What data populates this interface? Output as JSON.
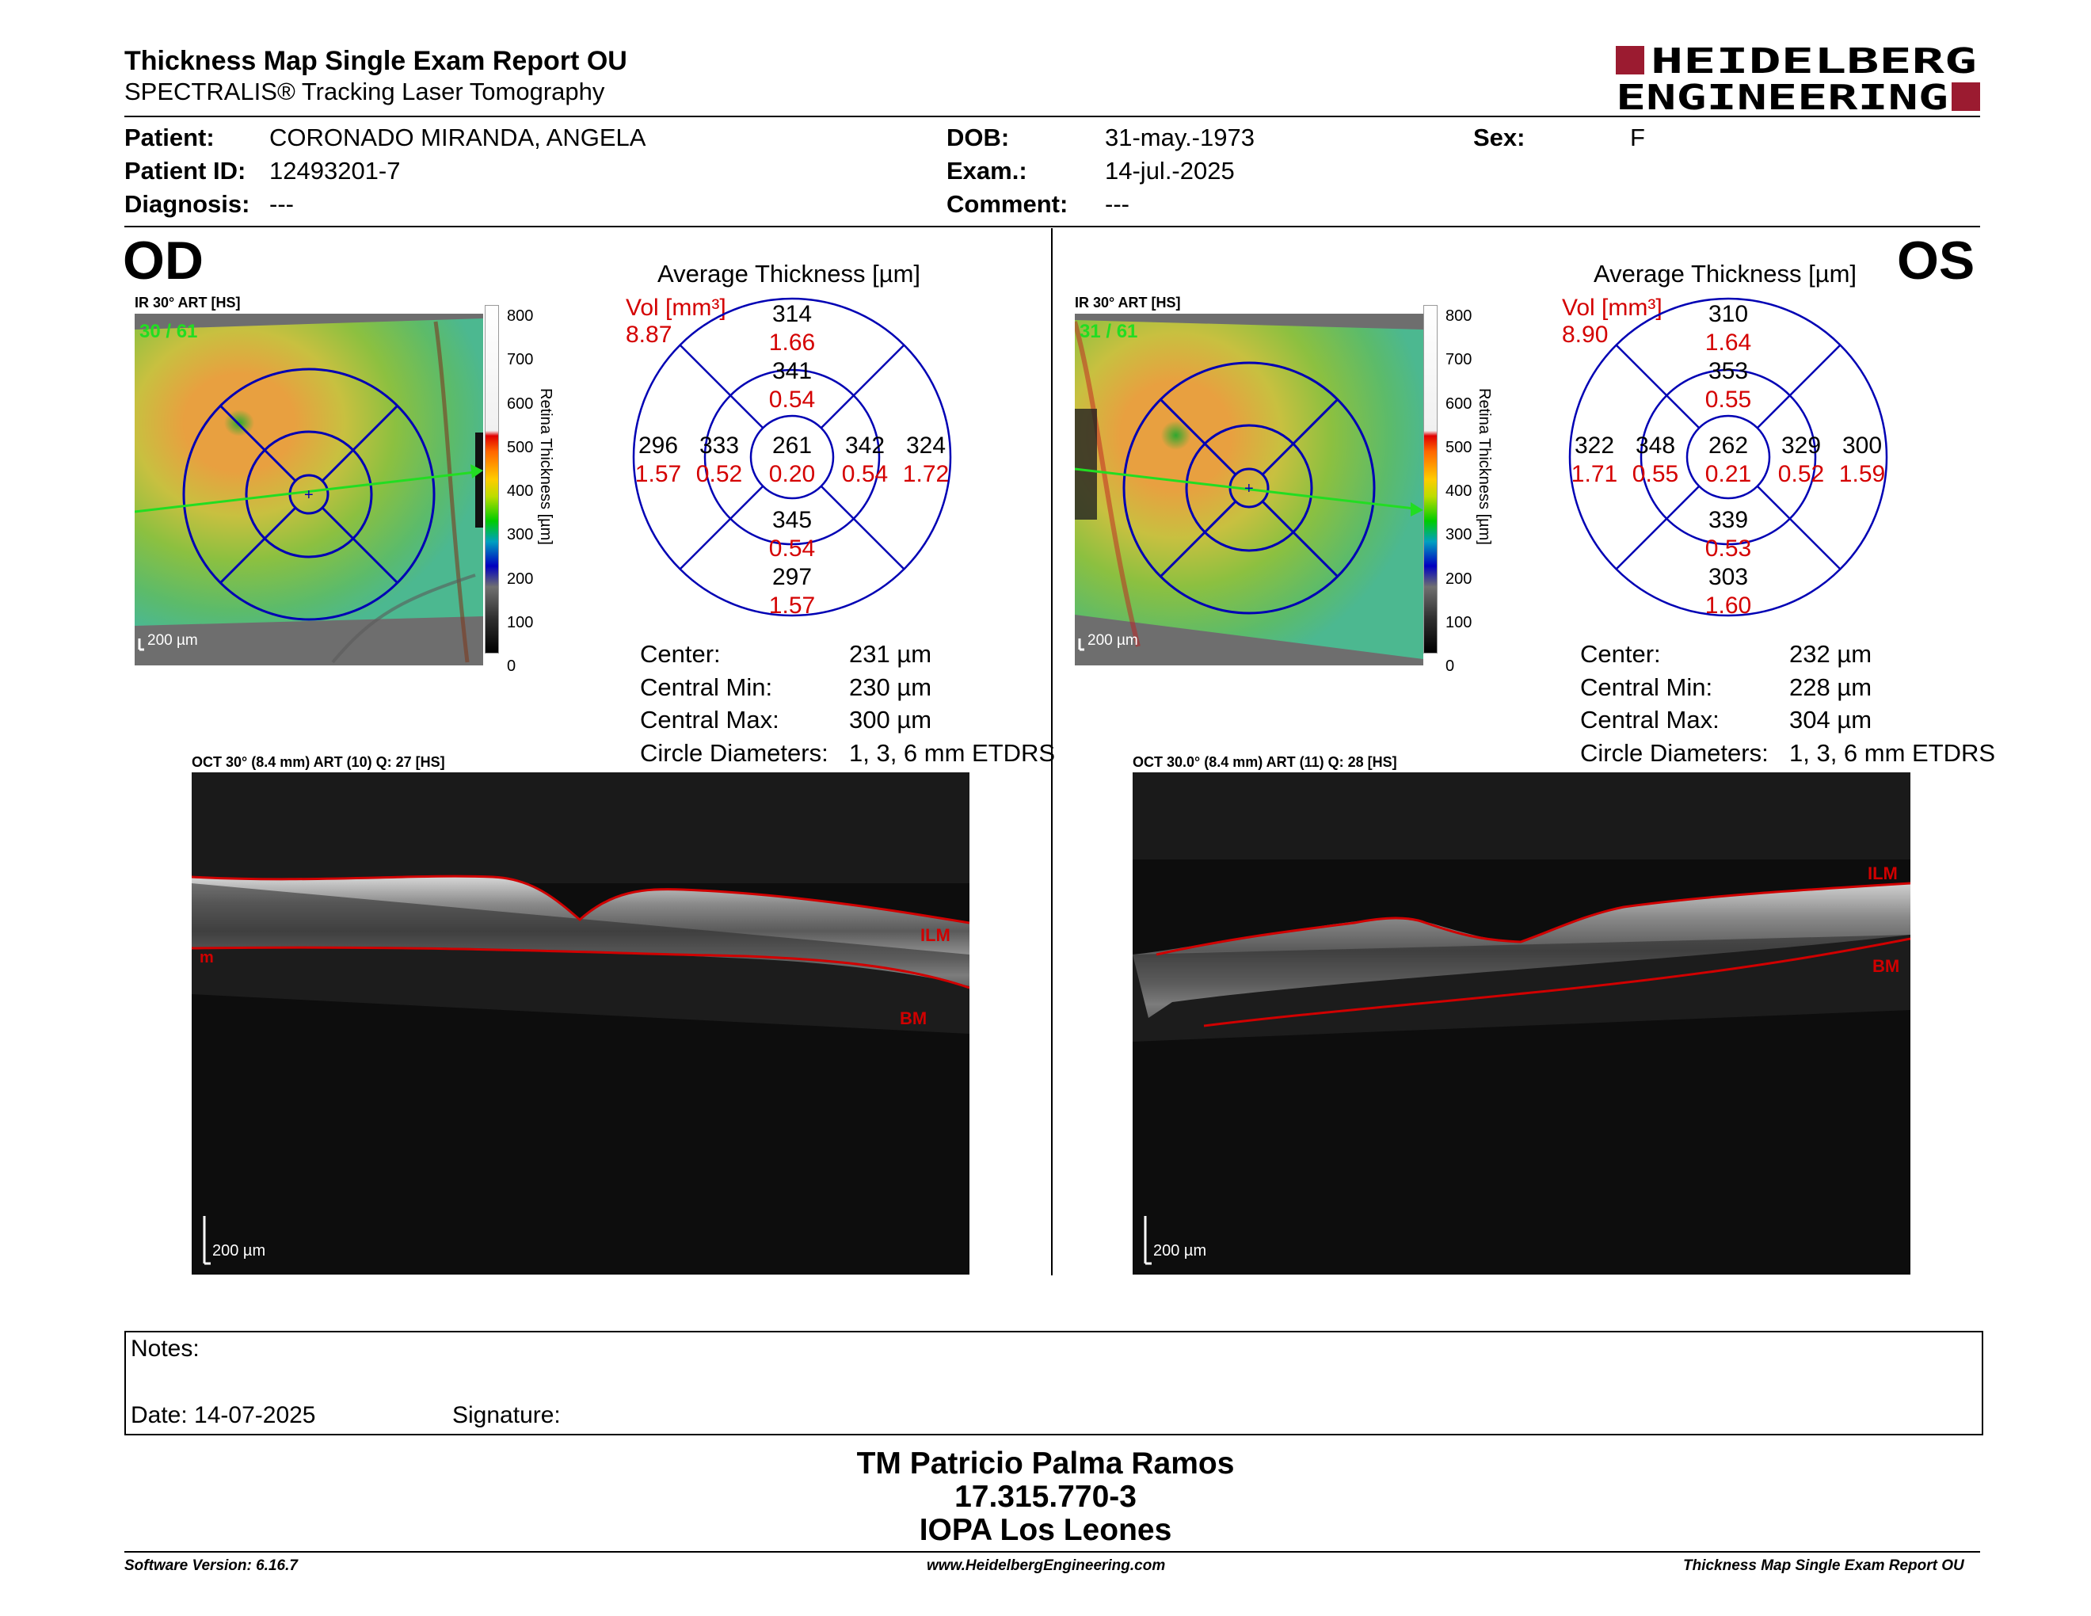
{
  "header": {
    "title": "Thickness Map Single Exam Report OU",
    "subtitle": "SPECTRALIS® Tracking Laser Tomography",
    "logo_line1": "HEIDELBERG",
    "logo_line2": "ENGINEERING",
    "logo_color": "#9b1b30"
  },
  "patient": {
    "patient_label": "Patient:",
    "patient_value": "CORONADO MIRANDA, ANGELA",
    "id_label": "Patient ID:",
    "id_value": "12493201-7",
    "diagnosis_label": "Diagnosis:",
    "diagnosis_value": "---",
    "dob_label": "DOB:",
    "dob_value": "31-may.-1973",
    "exam_label": "Exam.:",
    "exam_value": "14-jul.-2025",
    "comment_label": "Comment:",
    "comment_value": "---",
    "sex_label": "Sex:",
    "sex_value": "F"
  },
  "od": {
    "eye_label": "OD",
    "ir_title": "IR 30° ART [HS]",
    "ir_counter": "30 / 61",
    "ir_scale": "200 µm",
    "avg_title": "Average Thickness [µm]",
    "vol_label": "Vol [mm³]",
    "vol_value": "8.87",
    "sectors": {
      "center": {
        "t": "261",
        "v": "0.20"
      },
      "inner_sup": {
        "t": "341",
        "v": "0.54"
      },
      "inner_inf": {
        "t": "345",
        "v": "0.54"
      },
      "inner_left": {
        "t": "333",
        "v": "0.52"
      },
      "inner_right": {
        "t": "342",
        "v": "0.54"
      },
      "outer_sup": {
        "t": "314",
        "v": "1.66"
      },
      "outer_inf": {
        "t": "297",
        "v": "1.57"
      },
      "outer_left": {
        "t": "296",
        "v": "1.57"
      },
      "outer_right": {
        "t": "324",
        "v": "1.72"
      }
    },
    "stats": {
      "center_label": "Center:",
      "center_value": "231 µm",
      "min_label": "Central Min:",
      "min_value": "230 µm",
      "max_label": "Central Max:",
      "max_value": "300 µm",
      "diam_label": "Circle Diameters:",
      "diam_value": "1, 3, 6 mm ETDRS"
    },
    "oct_title": "OCT 30° (8.4 mm) ART (10) Q: 27 [HS]",
    "oct_scale": "200 µm",
    "ilm_label": "ILM",
    "bm_label": "BM",
    "left_mark": "m"
  },
  "os": {
    "eye_label": "OS",
    "ir_title": "IR 30° ART [HS]",
    "ir_counter": "31 / 61",
    "ir_scale": "200 µm",
    "avg_title": "Average Thickness [µm]",
    "vol_label": "Vol [mm³]",
    "vol_value": "8.90",
    "sectors": {
      "center": {
        "t": "262",
        "v": "0.21"
      },
      "inner_sup": {
        "t": "353",
        "v": "0.55"
      },
      "inner_inf": {
        "t": "339",
        "v": "0.53"
      },
      "inner_left": {
        "t": "348",
        "v": "0.55"
      },
      "inner_right": {
        "t": "329",
        "v": "0.52"
      },
      "outer_sup": {
        "t": "310",
        "v": "1.64"
      },
      "outer_inf": {
        "t": "303",
        "v": "1.60"
      },
      "outer_left": {
        "t": "322",
        "v": "1.71"
      },
      "outer_right": {
        "t": "300",
        "v": "1.59"
      }
    },
    "stats": {
      "center_label": "Center:",
      "center_value": "232 µm",
      "min_label": "Central Min:",
      "min_value": "228 µm",
      "max_label": "Central Max:",
      "max_value": "304 µm",
      "diam_label": "Circle Diameters:",
      "diam_value": "1, 3, 6 mm ETDRS"
    },
    "oct_title": "OCT 30.0° (8.4 mm) ART (11) Q: 28 [HS]",
    "oct_scale": "200 µm",
    "ilm_label": "ILM",
    "bm_label": "BM"
  },
  "colorbar": {
    "ticks": [
      "800",
      "700",
      "600",
      "500",
      "400",
      "300",
      "200",
      "100",
      "0"
    ],
    "label": "Retina  Thickness [µm]"
  },
  "notes": {
    "notes_label": "Notes:",
    "date_label": "Date: 14-07-2025",
    "signature_label": "Signature:"
  },
  "signoff": {
    "name": "TM Patricio Palma Ramos",
    "rut": "17.315.770-3",
    "institution": "IOPA Los Leones"
  },
  "footer": {
    "software": "Software Version: 6.16.7",
    "website": "www.HeidelbergEngineering.com",
    "report": "Thickness Map Single Exam Report OU"
  },
  "colors": {
    "thickness_number": "#000000",
    "volume_number": "#d40000",
    "grid_blue": "#0000b4",
    "scan_green": "#22dd22",
    "boundary_red": "#d00000"
  }
}
